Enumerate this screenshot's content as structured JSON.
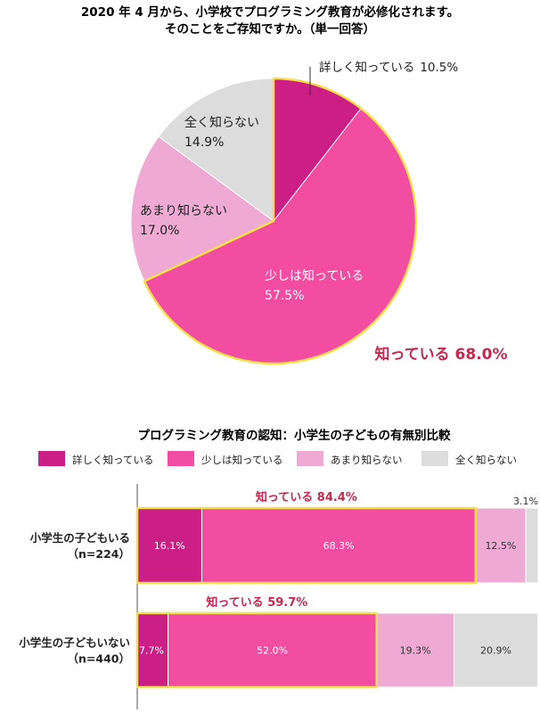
{
  "colors": {
    "dark_pink": "#cc1f85",
    "pink": "#f24da1",
    "light_pink": "#eeaad3",
    "gray": "#dcdcdc",
    "accent_red": "#c2294f",
    "outline_yellow": "#f5e04b"
  },
  "chart_data": [
    {
      "type": "pie",
      "title": "2020 年 4 月から、小学校でプログラミング教育が必修化されます。",
      "subtitle": "そのことをご存知ですか。（単一回答）",
      "slices": [
        {
          "label": "詳しく知っている",
          "value": 10.5,
          "display": "10.5%",
          "color_key": "dark_pink"
        },
        {
          "label": "少しは知っている",
          "value": 57.5,
          "display": "57.5%",
          "color_key": "pink"
        },
        {
          "label": "あまり知らない",
          "value": 17.0,
          "display": "17.0%",
          "color_key": "light_pink"
        },
        {
          "label": "全く知らない",
          "value": 14.9,
          "display": "14.9%",
          "color_key": "gray"
        }
      ],
      "annotation": "知っている 68.0%"
    },
    {
      "type": "bar",
      "orientation": "horizontal-stacked",
      "title": "プログラミング教育の認知：小学生の子どもの有無別比較",
      "legend": [
        "詳しく知っている",
        "少しは知っている",
        "あまり知らない",
        "全く知らない"
      ],
      "categories": [
        {
          "line1": "小学生の子どもいる",
          "line2": "（n=224）"
        },
        {
          "line1": "小学生の子どもいない",
          "line2": "（n=440）"
        }
      ],
      "series": [
        {
          "name": "詳しく知っている",
          "values": [
            16.1,
            7.7
          ],
          "labels": [
            "16.1%",
            "7.7%"
          ]
        },
        {
          "name": "少しは知っている",
          "values": [
            68.3,
            52.0
          ],
          "labels": [
            "68.3%",
            "52.0%"
          ]
        },
        {
          "name": "あまり知らない",
          "values": [
            12.5,
            19.3
          ],
          "labels": [
            "12.5%",
            "19.3%"
          ]
        },
        {
          "name": "全く知らない",
          "values": [
            3.1,
            20.9
          ],
          "labels": [
            "3.1%",
            "20.9%"
          ]
        }
      ],
      "totals": [
        "知っている 84.4%",
        "知っている 59.7%"
      ],
      "xlim": [
        0,
        100
      ]
    }
  ]
}
